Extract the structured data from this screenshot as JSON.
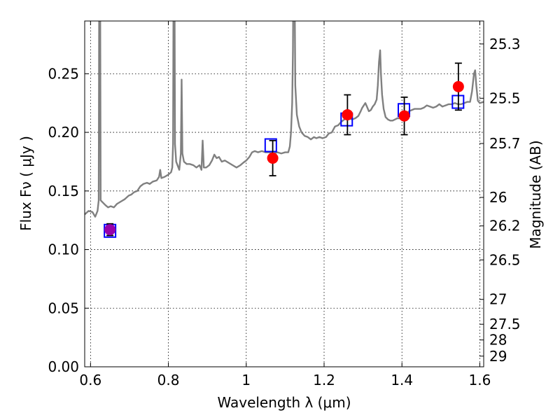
{
  "chart_data": {
    "type": "scatter",
    "xlabel": "Wavelength  λ (μm)",
    "ylabel": "Flux  Fν  ( μJy )",
    "y2label": "Magnitude (AB)",
    "xlim": [
      0.585,
      1.61
    ],
    "ylim": [
      0.0,
      0.295
    ],
    "grid": true,
    "x_ticks": [
      0.6,
      0.8,
      1.0,
      1.2,
      1.4,
      1.6
    ],
    "x_tick_labels": [
      "0.6",
      "0.8",
      "1",
      "1.2",
      "1.4",
      "1.6"
    ],
    "y_ticks": [
      0.0,
      0.05,
      0.1,
      0.15,
      0.2,
      0.25
    ],
    "y_tick_labels": [
      "0.00",
      "0.05",
      "0.10",
      "0.15",
      "0.20",
      "0.25"
    ],
    "y2_ticks": [
      {
        "label": "25.3",
        "flux": 0.2754
      },
      {
        "label": "25.5",
        "flux": 0.2291
      },
      {
        "label": "25.7",
        "flux": 0.1905
      },
      {
        "label": "26",
        "flux": 0.1445
      },
      {
        "label": "26.2",
        "flux": 0.1202
      },
      {
        "label": "26.5",
        "flux": 0.0912
      },
      {
        "label": "27",
        "flux": 0.0575
      },
      {
        "label": "27.5",
        "flux": 0.0363
      },
      {
        "label": "28",
        "flux": 0.0229
      },
      {
        "label": "29",
        "flux": 0.0091
      }
    ],
    "series": [
      {
        "kind": "line",
        "color": "#808080",
        "points": [
          [
            0.585,
            0.13
          ],
          [
            0.595,
            0.133
          ],
          [
            0.605,
            0.132
          ],
          [
            0.612,
            0.128
          ],
          [
            0.618,
            0.133
          ],
          [
            0.621,
            0.142
          ],
          [
            0.6225,
            0.36
          ],
          [
            0.6245,
            0.36
          ],
          [
            0.626,
            0.142
          ],
          [
            0.632,
            0.14
          ],
          [
            0.638,
            0.138
          ],
          [
            0.645,
            0.136
          ],
          [
            0.652,
            0.137
          ],
          [
            0.66,
            0.136
          ],
          [
            0.668,
            0.139
          ],
          [
            0.678,
            0.141
          ],
          [
            0.688,
            0.143
          ],
          [
            0.698,
            0.146
          ],
          [
            0.705,
            0.147
          ],
          [
            0.712,
            0.149
          ],
          [
            0.72,
            0.15
          ],
          [
            0.728,
            0.154
          ],
          [
            0.736,
            0.156
          ],
          [
            0.745,
            0.157
          ],
          [
            0.752,
            0.156
          ],
          [
            0.76,
            0.158
          ],
          [
            0.77,
            0.159
          ],
          [
            0.776,
            0.162
          ],
          [
            0.779,
            0.168
          ],
          [
            0.782,
            0.161
          ],
          [
            0.79,
            0.162
          ],
          [
            0.8,
            0.164
          ],
          [
            0.807,
            0.166
          ],
          [
            0.81,
            0.17
          ],
          [
            0.812,
            0.19
          ],
          [
            0.8135,
            0.36
          ],
          [
            0.8155,
            0.36
          ],
          [
            0.817,
            0.19
          ],
          [
            0.82,
            0.175
          ],
          [
            0.828,
            0.168
          ],
          [
            0.832,
            0.182
          ],
          [
            0.834,
            0.245
          ],
          [
            0.836,
            0.182
          ],
          [
            0.84,
            0.175
          ],
          [
            0.847,
            0.173
          ],
          [
            0.855,
            0.173
          ],
          [
            0.864,
            0.172
          ],
          [
            0.872,
            0.17
          ],
          [
            0.88,
            0.172
          ],
          [
            0.885,
            0.168
          ],
          [
            0.888,
            0.193
          ],
          [
            0.891,
            0.17
          ],
          [
            0.897,
            0.17
          ],
          [
            0.905,
            0.172
          ],
          [
            0.912,
            0.176
          ],
          [
            0.918,
            0.181
          ],
          [
            0.924,
            0.178
          ],
          [
            0.93,
            0.179
          ],
          [
            0.937,
            0.175
          ],
          [
            0.945,
            0.176
          ],
          [
            0.955,
            0.174
          ],
          [
            0.965,
            0.172
          ],
          [
            0.975,
            0.17
          ],
          [
            0.985,
            0.172
          ],
          [
            0.992,
            0.174
          ],
          [
            1.0,
            0.176
          ],
          [
            1.008,
            0.179
          ],
          [
            1.015,
            0.183
          ],
          [
            1.022,
            0.184
          ],
          [
            1.03,
            0.183
          ],
          [
            1.04,
            0.184
          ],
          [
            1.05,
            0.183
          ],
          [
            1.06,
            0.183
          ],
          [
            1.07,
            0.182
          ],
          [
            1.08,
            0.183
          ],
          [
            1.09,
            0.182
          ],
          [
            1.1,
            0.183
          ],
          [
            1.108,
            0.183
          ],
          [
            1.112,
            0.188
          ],
          [
            1.115,
            0.2
          ],
          [
            1.118,
            0.225
          ],
          [
            1.12,
            0.27
          ],
          [
            1.1215,
            0.36
          ],
          [
            1.1235,
            0.36
          ],
          [
            1.126,
            0.24
          ],
          [
            1.13,
            0.215
          ],
          [
            1.136,
            0.205
          ],
          [
            1.142,
            0.2
          ],
          [
            1.15,
            0.197
          ],
          [
            1.158,
            0.196
          ],
          [
            1.166,
            0.194
          ],
          [
            1.174,
            0.196
          ],
          [
            1.18,
            0.195
          ],
          [
            1.188,
            0.196
          ],
          [
            1.196,
            0.195
          ],
          [
            1.205,
            0.196
          ],
          [
            1.212,
            0.199
          ],
          [
            1.22,
            0.2
          ],
          [
            1.228,
            0.205
          ],
          [
            1.236,
            0.206
          ],
          [
            1.244,
            0.209
          ],
          [
            1.252,
            0.211
          ],
          [
            1.258,
            0.214
          ],
          [
            1.265,
            0.212
          ],
          [
            1.272,
            0.211
          ],
          [
            1.28,
            0.212
          ],
          [
            1.288,
            0.214
          ],
          [
            1.294,
            0.218
          ],
          [
            1.298,
            0.221
          ],
          [
            1.302,
            0.223
          ],
          [
            1.306,
            0.225
          ],
          [
            1.31,
            0.222
          ],
          [
            1.315,
            0.218
          ],
          [
            1.32,
            0.219
          ],
          [
            1.325,
            0.222
          ],
          [
            1.33,
            0.224
          ],
          [
            1.335,
            0.228
          ],
          [
            1.338,
            0.24
          ],
          [
            1.341,
            0.26
          ],
          [
            1.344,
            0.27
          ],
          [
            1.346,
            0.25
          ],
          [
            1.349,
            0.232
          ],
          [
            1.353,
            0.22
          ],
          [
            1.358,
            0.213
          ],
          [
            1.364,
            0.211
          ],
          [
            1.37,
            0.21
          ],
          [
            1.376,
            0.21
          ],
          [
            1.382,
            0.211
          ],
          [
            1.388,
            0.212
          ],
          [
            1.395,
            0.212
          ],
          [
            1.402,
            0.214
          ],
          [
            1.41,
            0.216
          ],
          [
            1.418,
            0.218
          ],
          [
            1.425,
            0.219
          ],
          [
            1.432,
            0.22
          ],
          [
            1.44,
            0.22
          ],
          [
            1.448,
            0.22
          ],
          [
            1.456,
            0.221
          ],
          [
            1.464,
            0.223
          ],
          [
            1.472,
            0.222
          ],
          [
            1.48,
            0.221
          ],
          [
            1.488,
            0.222
          ],
          [
            1.496,
            0.224
          ],
          [
            1.504,
            0.222
          ],
          [
            1.512,
            0.223
          ],
          [
            1.52,
            0.224
          ],
          [
            1.528,
            0.224
          ],
          [
            1.536,
            0.225
          ],
          [
            1.544,
            0.224
          ],
          [
            1.552,
            0.224
          ],
          [
            1.56,
            0.225
          ],
          [
            1.568,
            0.226
          ],
          [
            1.575,
            0.226
          ],
          [
            1.58,
            0.235
          ],
          [
            1.585,
            0.25
          ],
          [
            1.588,
            0.253
          ],
          [
            1.591,
            0.24
          ],
          [
            1.595,
            0.227
          ],
          [
            1.6,
            0.225
          ],
          [
            1.61,
            0.226
          ]
        ]
      },
      {
        "kind": "model-squares",
        "color": "#0000ff",
        "points": [
          {
            "x": 0.65,
            "y": 0.116
          },
          {
            "x": 1.063,
            "y": 0.189
          },
          {
            "x": 1.258,
            "y": 0.211
          },
          {
            "x": 1.405,
            "y": 0.219
          },
          {
            "x": 1.544,
            "y": 0.226
          }
        ]
      },
      {
        "kind": "observed-circles",
        "color": "#ff0000",
        "points": [
          {
            "x": 0.65,
            "y": 0.117,
            "err": 0.005,
            "color": "#9900aa"
          },
          {
            "x": 1.068,
            "y": 0.178,
            "err": 0.015
          },
          {
            "x": 1.26,
            "y": 0.215,
            "err": 0.017
          },
          {
            "x": 1.406,
            "y": 0.214,
            "err": 0.016
          },
          {
            "x": 1.545,
            "y": 0.239,
            "err": 0.02
          }
        ]
      }
    ]
  }
}
